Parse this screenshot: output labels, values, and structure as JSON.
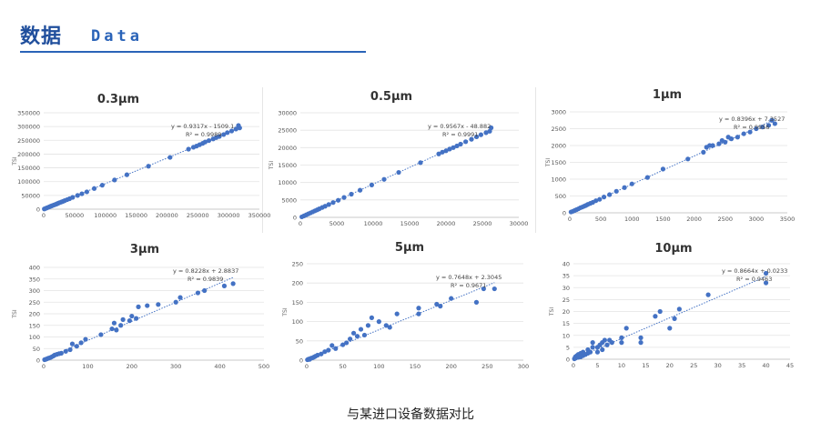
{
  "header": {
    "title_zh": "数据",
    "title_en": "Data"
  },
  "caption": "与某进口设备数据对比",
  "colors": {
    "accent": "#2a63b8",
    "title": "#1f4e9c",
    "point": "#4472c4",
    "trend": "#4472c4"
  },
  "chart_data": [
    {
      "type": "scatter",
      "title": "0.3μm",
      "ylabel": "TSI",
      "xlim": [
        0,
        350000
      ],
      "ylim": [
        0,
        350000
      ],
      "xticks": [
        0,
        50000,
        100000,
        150000,
        200000,
        250000,
        300000,
        350000
      ],
      "yticks": [
        0,
        50000,
        100000,
        150000,
        200000,
        250000,
        300000,
        350000
      ],
      "tick_labels_x": [
        "0",
        "50000",
        "100000",
        "150000",
        "200000",
        "250000",
        "300000",
        "350000"
      ],
      "tick_labels_y": [
        "0",
        "50000",
        "100000",
        "150000",
        "200000",
        "250000",
        "300000",
        "350000"
      ],
      "trendline": {
        "equation": "y = 0.9317x - 1509.1",
        "r2": "R² = 0.9989",
        "slope": 0.9317,
        "intercept": -1509.1
      },
      "points": [
        [
          1000,
          900
        ],
        [
          3000,
          2700
        ],
        [
          5000,
          4500
        ],
        [
          7000,
          6400
        ],
        [
          9000,
          8300
        ],
        [
          11000,
          10200
        ],
        [
          13000,
          12000
        ],
        [
          15000,
          13800
        ],
        [
          17000,
          15500
        ],
        [
          19000,
          17200
        ],
        [
          21000,
          19000
        ],
        [
          23000,
          21000
        ],
        [
          25000,
          23000
        ],
        [
          28000,
          25500
        ],
        [
          31000,
          28000
        ],
        [
          34000,
          31000
        ],
        [
          38000,
          34500
        ],
        [
          42000,
          38000
        ],
        [
          47000,
          43000
        ],
        [
          55000,
          50000
        ],
        [
          62000,
          56000
        ],
        [
          70000,
          63000
        ],
        [
          82000,
          75000
        ],
        [
          95000,
          87000
        ],
        [
          115000,
          106000
        ],
        [
          135000,
          125000
        ],
        [
          170000,
          156000
        ],
        [
          205000,
          188000
        ],
        [
          235000,
          218000
        ],
        [
          243000,
          225000
        ],
        [
          248000,
          229000
        ],
        [
          253000,
          234000
        ],
        [
          258000,
          239000
        ],
        [
          262000,
          244000
        ],
        [
          268000,
          249000
        ],
        [
          275000,
          255000
        ],
        [
          280000,
          260000
        ],
        [
          285000,
          264000
        ],
        [
          292000,
          271000
        ],
        [
          298000,
          278000
        ],
        [
          305000,
          284000
        ],
        [
          312000,
          291000
        ],
        [
          318000,
          295000
        ],
        [
          316000,
          304000
        ]
      ]
    },
    {
      "type": "scatter",
      "title": "0.5μm",
      "ylabel": "TSI",
      "xlim": [
        0,
        30000
      ],
      "ylim": [
        0,
        30000
      ],
      "xticks": [
        0,
        5000,
        10000,
        15000,
        20000,
        25000,
        30000
      ],
      "yticks": [
        0,
        5000,
        10000,
        15000,
        20000,
        25000,
        30000
      ],
      "tick_labels_x": [
        "0",
        "5000",
        "10000",
        "15000",
        "20000",
        "25000",
        "30000"
      ],
      "tick_labels_y": [
        "0",
        "5000",
        "10000",
        "15000",
        "20000",
        "25000",
        "30000"
      ],
      "trendline": {
        "equation": "y = 0.9567x - 48.882",
        "r2": "R² = 0.9991",
        "slope": 0.9567,
        "intercept": -48.882
      },
      "points": [
        [
          200,
          150
        ],
        [
          500,
          420
        ],
        [
          800,
          720
        ],
        [
          1100,
          1010
        ],
        [
          1400,
          1290
        ],
        [
          1700,
          1580
        ],
        [
          2000,
          1870
        ],
        [
          2300,
          2150
        ],
        [
          2600,
          2450
        ],
        [
          3000,
          2830
        ],
        [
          3400,
          3200
        ],
        [
          3900,
          3680
        ],
        [
          4500,
          4250
        ],
        [
          5200,
          4900
        ],
        [
          6000,
          5700
        ],
        [
          7000,
          6650
        ],
        [
          8200,
          7800
        ],
        [
          9800,
          9300
        ],
        [
          11500,
          10900
        ],
        [
          13500,
          12900
        ],
        [
          16500,
          15700
        ],
        [
          19000,
          18200
        ],
        [
          19500,
          18700
        ],
        [
          20000,
          19100
        ],
        [
          20500,
          19600
        ],
        [
          21000,
          20000
        ],
        [
          21500,
          20500
        ],
        [
          22000,
          21000
        ],
        [
          22700,
          21700
        ],
        [
          23500,
          22400
        ],
        [
          24200,
          23100
        ],
        [
          24800,
          23700
        ],
        [
          25500,
          24300
        ],
        [
          26000,
          24700
        ],
        [
          26200,
          25700
        ]
      ]
    },
    {
      "type": "scatter",
      "title": "1μm",
      "ylabel": "TSI",
      "xlim": [
        0,
        3500
      ],
      "ylim": [
        0,
        3000
      ],
      "xticks": [
        0,
        500,
        1000,
        1500,
        2000,
        2500,
        3000,
        3500
      ],
      "yticks": [
        0,
        500,
        1000,
        1500,
        2000,
        2500,
        3000
      ],
      "tick_labels_x": [
        "0",
        "500",
        "1000",
        "1500",
        "2000",
        "2500",
        "3000",
        "3500"
      ],
      "tick_labels_y": [
        "0",
        "500",
        "1000",
        "1500",
        "2000",
        "2500",
        "3000"
      ],
      "trendline": {
        "equation": "y = 0.8396x + 7.3527",
        "r2": "R² = 0.9956",
        "slope": 0.8396,
        "intercept": 7.3527
      },
      "points": [
        [
          20,
          25
        ],
        [
          50,
          45
        ],
        [
          80,
          70
        ],
        [
          110,
          95
        ],
        [
          140,
          120
        ],
        [
          170,
          150
        ],
        [
          200,
          170
        ],
        [
          230,
          195
        ],
        [
          260,
          220
        ],
        [
          290,
          250
        ],
        [
          330,
          280
        ],
        [
          370,
          310
        ],
        [
          420,
          360
        ],
        [
          480,
          400
        ],
        [
          550,
          470
        ],
        [
          640,
          540
        ],
        [
          750,
          640
        ],
        [
          880,
          750
        ],
        [
          1000,
          860
        ],
        [
          1250,
          1050
        ],
        [
          1500,
          1300
        ],
        [
          1900,
          1600
        ],
        [
          2150,
          1800
        ],
        [
          2200,
          1950
        ],
        [
          2250,
          2000
        ],
        [
          2300,
          2000
        ],
        [
          2400,
          2050
        ],
        [
          2450,
          2150
        ],
        [
          2500,
          2100
        ],
        [
          2600,
          2200
        ],
        [
          2700,
          2250
        ],
        [
          2800,
          2350
        ],
        [
          2900,
          2400
        ],
        [
          3000,
          2500
        ],
        [
          3100,
          2550
        ],
        [
          3200,
          2600
        ],
        [
          3300,
          2650
        ],
        [
          3250,
          2750
        ],
        [
          2550,
          2250
        ]
      ]
    },
    {
      "type": "scatter",
      "title": "3μm",
      "ylabel": "TSI",
      "xlim": [
        0,
        500
      ],
      "ylim": [
        0,
        400
      ],
      "xticks": [
        0,
        100,
        200,
        300,
        400,
        500
      ],
      "yticks": [
        0,
        50,
        100,
        150,
        200,
        250,
        300,
        350,
        400
      ],
      "tick_labels_x": [
        "0",
        "100",
        "200",
        "300",
        "400",
        "500"
      ],
      "tick_labels_y": [
        "0",
        "50",
        "100",
        "150",
        "200",
        "250",
        "300",
        "350",
        "400"
      ],
      "trendline": {
        "equation": "y = 0.8228x + 2.8837",
        "r2": "R² = 0.9839",
        "slope": 0.8228,
        "intercept": 2.8837
      },
      "points": [
        [
          2,
          2
        ],
        [
          5,
          4
        ],
        [
          8,
          6
        ],
        [
          10,
          8
        ],
        [
          12,
          9
        ],
        [
          15,
          11
        ],
        [
          18,
          14
        ],
        [
          22,
          18
        ],
        [
          25,
          22
        ],
        [
          30,
          25
        ],
        [
          35,
          28
        ],
        [
          40,
          30
        ],
        [
          50,
          38
        ],
        [
          60,
          45
        ],
        [
          65,
          70
        ],
        [
          75,
          60
        ],
        [
          85,
          75
        ],
        [
          95,
          90
        ],
        [
          130,
          110
        ],
        [
          155,
          135
        ],
        [
          160,
          160
        ],
        [
          165,
          130
        ],
        [
          175,
          150
        ],
        [
          180,
          175
        ],
        [
          195,
          170
        ],
        [
          200,
          190
        ],
        [
          210,
          180
        ],
        [
          215,
          230
        ],
        [
          235,
          235
        ],
        [
          260,
          240
        ],
        [
          300,
          250
        ],
        [
          310,
          270
        ],
        [
          350,
          290
        ],
        [
          365,
          300
        ],
        [
          410,
          320
        ],
        [
          430,
          330
        ]
      ]
    },
    {
      "type": "scatter",
      "title": "5μm",
      "ylabel": "TSI",
      "xlim": [
        0,
        300
      ],
      "ylim": [
        0,
        250
      ],
      "xticks": [
        0,
        50,
        100,
        150,
        200,
        250,
        300
      ],
      "yticks": [
        0,
        50,
        100,
        150,
        200,
        250
      ],
      "tick_labels_x": [
        "0",
        "50",
        "100",
        "150",
        "200",
        "250",
        "300"
      ],
      "tick_labels_y": [
        "0",
        "50",
        "100",
        "150",
        "200",
        "250"
      ],
      "trendline": {
        "equation": "y = 0.7648x + 2.3045",
        "r2": "R² = 0.9671",
        "slope": 0.7648,
        "intercept": 2.3045
      },
      "points": [
        [
          1,
          1
        ],
        [
          2,
          2
        ],
        [
          3,
          3
        ],
        [
          4,
          2
        ],
        [
          6,
          5
        ],
        [
          8,
          6
        ],
        [
          10,
          8
        ],
        [
          12,
          10
        ],
        [
          15,
          13
        ],
        [
          20,
          16
        ],
        [
          25,
          22
        ],
        [
          30,
          26
        ],
        [
          35,
          38
        ],
        [
          40,
          30
        ],
        [
          50,
          40
        ],
        [
          55,
          45
        ],
        [
          60,
          55
        ],
        [
          65,
          70
        ],
        [
          70,
          62
        ],
        [
          75,
          80
        ],
        [
          80,
          65
        ],
        [
          85,
          90
        ],
        [
          90,
          110
        ],
        [
          100,
          100
        ],
        [
          110,
          90
        ],
        [
          115,
          85
        ],
        [
          125,
          120
        ],
        [
          155,
          120
        ],
        [
          155,
          135
        ],
        [
          180,
          145
        ],
        [
          185,
          140
        ],
        [
          200,
          160
        ],
        [
          235,
          150
        ],
        [
          245,
          185
        ],
        [
          260,
          185
        ]
      ]
    },
    {
      "type": "scatter",
      "title": "10μm",
      "ylabel": "TSI",
      "xlim": [
        0,
        45
      ],
      "ylim": [
        0,
        40
      ],
      "xticks": [
        0,
        5,
        10,
        15,
        20,
        25,
        30,
        35,
        40,
        45
      ],
      "yticks": [
        0,
        5,
        10,
        15,
        20,
        25,
        30,
        35,
        40
      ],
      "tick_labels_x": [
        "0",
        "5",
        "10",
        "15",
        "20",
        "25",
        "30",
        "35",
        "40",
        "45"
      ],
      "tick_labels_y": [
        "0",
        "5",
        "10",
        "15",
        "20",
        "25",
        "30",
        "35",
        "40"
      ],
      "trendline": {
        "equation": "y = 0.8664x + 0.0233",
        "r2": "R² = 0.9463",
        "slope": 0.8664,
        "intercept": 0.0233
      },
      "points": [
        [
          0.2,
          0.2
        ],
        [
          0.4,
          1
        ],
        [
          0.5,
          0.5
        ],
        [
          0.7,
          1.5
        ],
        [
          1,
          0.8
        ],
        [
          1,
          2
        ],
        [
          1.5,
          1
        ],
        [
          1.5,
          2.5
        ],
        [
          2,
          1.5
        ],
        [
          2,
          3
        ],
        [
          2.5,
          2
        ],
        [
          3,
          2.5
        ],
        [
          3,
          4
        ],
        [
          3.5,
          3
        ],
        [
          4,
          5
        ],
        [
          4,
          7
        ],
        [
          5,
          5
        ],
        [
          5,
          3
        ],
        [
          5.5,
          6
        ],
        [
          6,
          7
        ],
        [
          6,
          4
        ],
        [
          6.5,
          8
        ],
        [
          7,
          6
        ],
        [
          7.5,
          8
        ],
        [
          8,
          7
        ],
        [
          10,
          9
        ],
        [
          10,
          7
        ],
        [
          11,
          13
        ],
        [
          14,
          7
        ],
        [
          14,
          9
        ],
        [
          17,
          18
        ],
        [
          18,
          20
        ],
        [
          20,
          13
        ],
        [
          21,
          17
        ],
        [
          22,
          21
        ],
        [
          28,
          27
        ],
        [
          40,
          32
        ],
        [
          40,
          36
        ]
      ]
    }
  ]
}
